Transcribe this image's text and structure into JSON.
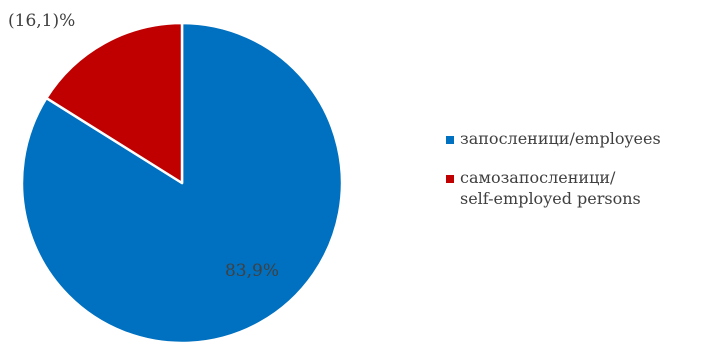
{
  "chart_data": {
    "type": "pie",
    "categories": [
      "запосленици/employees",
      "самозапосленици/\nself-employed persons"
    ],
    "values": [
      83.9,
      16.1
    ],
    "data_labels": [
      "83,9%",
      "(16,1)%"
    ],
    "colors": [
      "#0070c0",
      "#c00000"
    ],
    "legend_position": "right"
  }
}
